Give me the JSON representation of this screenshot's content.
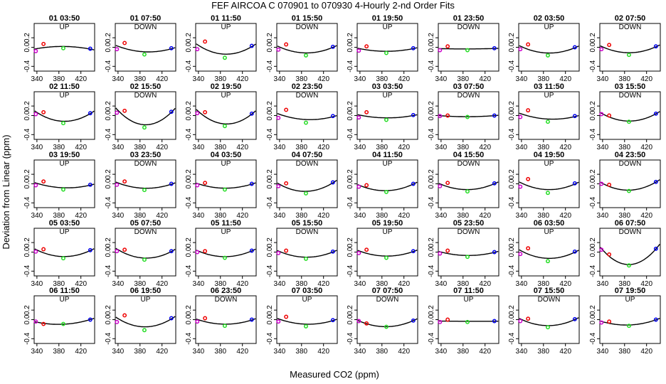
{
  "chart_data": {
    "type": "scatter",
    "title": "FEF   AIRCOA C   070901 to 070930   4-Hourly 2-nd Order Fits",
    "xlabel": "Measured CO2 (ppm)",
    "ylabel": "Deviation from Linear (ppm)",
    "xlim": [
      335,
      445
    ],
    "ylim": [
      -0.5,
      0.5
    ],
    "xticks": [
      "340",
      "380",
      "420"
    ],
    "yticks": [
      "-0.4",
      "0.0",
      "0.2"
    ],
    "grid": false,
    "rows": 5,
    "cols": 8,
    "standard_x": [
      338,
      352,
      388,
      437
    ],
    "standard_colors": [
      "#cc00cc",
      "#ee0000",
      "#22dd22",
      "#0000ee"
    ],
    "curve_color": "#000000",
    "panels": [
      {
        "title": "01 03:50",
        "direction": "UP",
        "points": [
          -0.08,
          0.07,
          -0.02,
          -0.03
        ],
        "curve": [
          0.035,
          -0.0002
        ]
      },
      {
        "title": "01 07:50",
        "direction": "DOWN",
        "points": [
          -0.04,
          0.09,
          -0.15,
          -0.02
        ],
        "curve": [
          0.041,
          -0.0002
        ]
      },
      {
        "title": "01 11:50",
        "direction": "UP",
        "points": [
          -0.04,
          0.12,
          -0.22,
          0.03
        ],
        "curve": [
          0.066,
          -0.0003
        ]
      },
      {
        "title": "01 15:50",
        "direction": "DOWN",
        "points": [
          -0.05,
          0.06,
          -0.17,
          0.01
        ],
        "curve": [
          0.049,
          -0.00025
        ]
      },
      {
        "title": "01 19:50",
        "direction": "UP",
        "points": [
          -0.07,
          0.02,
          -0.12,
          -0.02
        ],
        "curve": [
          0.032,
          -0.0002
        ]
      },
      {
        "title": "01 23:50",
        "direction": "DOWN",
        "points": [
          -0.06,
          0.02,
          -0.06,
          -0.02
        ],
        "curve": [
          0.02,
          -0.0001
        ]
      },
      {
        "title": "02 03:50",
        "direction": "UP",
        "points": [
          -0.04,
          0.06,
          -0.17,
          0.0
        ],
        "curve": [
          0.049,
          -0.00025
        ]
      },
      {
        "title": "02 07:50",
        "direction": "DOWN",
        "points": [
          -0.04,
          0.05,
          -0.16,
          0.02
        ],
        "curve": [
          0.053,
          -0.0003
        ]
      },
      {
        "title": "02 11:50",
        "direction": "UP",
        "points": [
          0.03,
          0.07,
          -0.16,
          0.05
        ],
        "curve": [
          0.042,
          -0.0002
        ]
      },
      {
        "title": "02 15:50",
        "direction": "DOWN",
        "points": [
          0.06,
          0.1,
          -0.25,
          0.08
        ],
        "curve": [
          0.09,
          -0.0004
        ]
      },
      {
        "title": "02 19:50",
        "direction": "UP",
        "points": [
          0.05,
          0.07,
          -0.22,
          0.04
        ],
        "curve": [
          0.062,
          -0.0003
        ]
      },
      {
        "title": "02 23:50",
        "direction": "DOWN",
        "points": [
          -0.05,
          0.12,
          -0.15,
          -0.01
        ],
        "curve": [
          0.035,
          -0.0002
        ]
      },
      {
        "title": "03 03:50",
        "direction": "UP",
        "points": [
          -0.04,
          0.07,
          -0.09,
          0.01
        ],
        "curve": [
          0.038,
          -0.0002
        ]
      },
      {
        "title": "03 07:50",
        "direction": "DOWN",
        "points": [
          -0.01,
          0.0,
          -0.03,
          0.0
        ],
        "curve": [
          0.024,
          -0.0001
        ]
      },
      {
        "title": "03 11:50",
        "direction": "UP",
        "points": [
          -0.03,
          0.11,
          -0.13,
          -0.01
        ],
        "curve": [
          0.036,
          -0.0002
        ]
      },
      {
        "title": "03 15:50",
        "direction": "DOWN",
        "points": [
          0.03,
          0.0,
          -0.13,
          0.04
        ],
        "curve": [
          0.046,
          -0.0002
        ]
      },
      {
        "title": "03 19:50",
        "direction": "UP",
        "points": [
          -0.03,
          0.05,
          -0.12,
          -0.02
        ],
        "curve": [
          0.031,
          -0.0002
        ]
      },
      {
        "title": "03 23:50",
        "direction": "DOWN",
        "points": [
          -0.02,
          0.05,
          -0.13,
          0.0
        ],
        "curve": [
          0.035,
          -0.0002
        ]
      },
      {
        "title": "04 03:50",
        "direction": "UP",
        "points": [
          -0.03,
          0.02,
          -0.12,
          0.0
        ],
        "curve": [
          0.03,
          -0.0002
        ]
      },
      {
        "title": "04 07:50",
        "direction": "DOWN",
        "points": [
          -0.05,
          0.01,
          -0.2,
          0.03
        ],
        "curve": [
          0.06,
          -0.0003
        ]
      },
      {
        "title": "04 11:50",
        "direction": "UP",
        "points": [
          -0.06,
          -0.03,
          -0.17,
          0.0
        ],
        "curve": [
          0.05,
          -0.0003
        ]
      },
      {
        "title": "04 15:50",
        "direction": "DOWN",
        "points": [
          -0.05,
          0.02,
          -0.16,
          0.01
        ],
        "curve": [
          0.049,
          -0.00025
        ]
      },
      {
        "title": "04 19:50",
        "direction": "UP",
        "points": [
          -0.06,
          0.1,
          -0.19,
          0.01
        ],
        "curve": [
          0.05,
          -0.0003
        ]
      },
      {
        "title": "04 23:50",
        "direction": "DOWN",
        "points": [
          0.0,
          -0.02,
          -0.15,
          0.04
        ],
        "curve": [
          0.05,
          -0.0003
        ]
      },
      {
        "title": "05 03:50",
        "direction": "UP",
        "points": [
          0.01,
          0.06,
          -0.13,
          0.04
        ],
        "curve": [
          0.04,
          -0.0002
        ]
      },
      {
        "title": "05 07:50",
        "direction": "DOWN",
        "points": [
          0.02,
          0.05,
          -0.16,
          0.02
        ],
        "curve": [
          0.044,
          -0.0002
        ]
      },
      {
        "title": "05 11:50",
        "direction": "UP",
        "points": [
          0.0,
          0.02,
          -0.12,
          0.03
        ],
        "curve": [
          0.04,
          -0.0002
        ]
      },
      {
        "title": "05 15:50",
        "direction": "DOWN",
        "points": [
          -0.02,
          0.03,
          -0.14,
          0.01
        ],
        "curve": [
          0.04,
          -0.0002
        ]
      },
      {
        "title": "05 19:50",
        "direction": "UP",
        "points": [
          -0.02,
          0.05,
          -0.12,
          0.02
        ],
        "curve": [
          0.035,
          -0.0002
        ]
      },
      {
        "title": "05 23:50",
        "direction": "DOWN",
        "points": [
          -0.03,
          0.03,
          -0.1,
          0.0
        ],
        "curve": [
          0.028,
          -0.00015
        ]
      },
      {
        "title": "06 03:50",
        "direction": "UP",
        "points": [
          -0.04,
          0.08,
          -0.19,
          0.01
        ],
        "curve": [
          0.05,
          -0.0003
        ]
      },
      {
        "title": "06 07:50",
        "direction": "DOWN",
        "points": [
          0.05,
          -0.05,
          -0.28,
          0.07
        ],
        "curve": [
          0.09,
          -0.0005
        ]
      },
      {
        "title": "06 11:50",
        "direction": "UP",
        "points": [
          -0.04,
          -0.09,
          -0.09,
          0.0
        ],
        "curve": [
          0.03,
          -0.0002
        ]
      },
      {
        "title": "06 19:50",
        "direction": "UP",
        "points": [
          -0.05,
          0.09,
          -0.22,
          0.03
        ],
        "curve": [
          0.055,
          -0.0003
        ]
      },
      {
        "title": "06 23:50",
        "direction": "DOWN",
        "points": [
          -0.04,
          0.03,
          -0.13,
          0.0
        ],
        "curve": [
          0.035,
          -0.0002
        ]
      },
      {
        "title": "07 03:50",
        "direction": "UP",
        "points": [
          -0.04,
          0.06,
          -0.14,
          -0.01
        ],
        "curve": [
          0.036,
          -0.0002
        ]
      },
      {
        "title": "07 07:50",
        "direction": "DOWN",
        "points": [
          -0.03,
          -0.08,
          -0.15,
          -0.02
        ],
        "curve": [
          0.03,
          -0.0002
        ]
      },
      {
        "title": "07 11:50",
        "direction": "UP",
        "points": [
          -0.05,
          0.0,
          -0.05,
          -0.03
        ],
        "curve": [
          0.01,
          -0.0001
        ]
      },
      {
        "title": "07 15:50",
        "direction": "DOWN",
        "points": [
          -0.03,
          0.02,
          -0.16,
          0.01
        ],
        "curve": [
          0.045,
          -0.0002
        ]
      },
      {
        "title": "07 19:50",
        "direction": "UP",
        "points": [
          -0.06,
          -0.04,
          -0.13,
          0.0
        ],
        "curve": [
          0.04,
          -0.0002
        ]
      }
    ]
  }
}
